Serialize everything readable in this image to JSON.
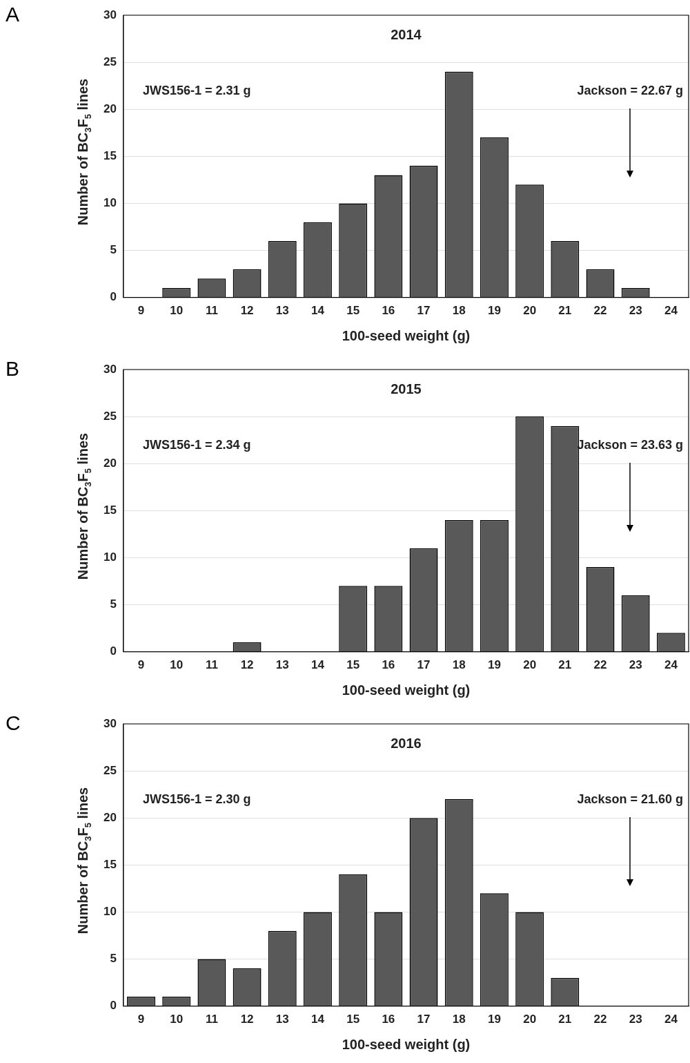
{
  "chart_data": [
    {
      "type": "bar",
      "title": "2014",
      "xlabel": "100-seed weight (g)",
      "ylabel": "Number of BC$_{3}$F$_{5}$ lines",
      "categories": [
        "9",
        "10",
        "11",
        "12",
        "13",
        "14",
        "15",
        "16",
        "17",
        "18",
        "19",
        "20",
        "21",
        "22",
        "23",
        "24"
      ],
      "values": [
        0,
        1,
        2,
        3,
        6,
        8,
        10,
        13,
        14,
        24,
        17,
        12,
        6,
        3,
        1,
        0
      ],
      "color": "#595959",
      "ylim": [
        0,
        30
      ],
      "yticks": [
        0,
        5,
        10,
        15,
        20,
        25,
        30
      ],
      "grid": "y",
      "legend": false,
      "annotations": [
        "A",
        "JWS156-1 = 2.31 g",
        "Jackson = 22.67 g"
      ]
    },
    {
      "type": "bar",
      "title": "2015",
      "xlabel": "100-seed weight (g)",
      "ylabel": "Number of BC$_{3}$F$_{5}$ lines",
      "categories": [
        "9",
        "10",
        "11",
        "12",
        "13",
        "14",
        "15",
        "16",
        "17",
        "18",
        "19",
        "20",
        "21",
        "22",
        "23",
        "24"
      ],
      "values": [
        0,
        0,
        0,
        1,
        0,
        0,
        7,
        7,
        11,
        14,
        14,
        25,
        24,
        9,
        6,
        2
      ],
      "color": "#595959",
      "ylim": [
        0,
        30
      ],
      "yticks": [
        0,
        5,
        10,
        15,
        20,
        25,
        30
      ],
      "grid": "y",
      "legend": false,
      "annotations": [
        "B",
        "JWS156-1 = 2.34 g",
        "Jackson = 23.63 g"
      ]
    },
    {
      "type": "bar",
      "title": "2016",
      "xlabel": "100-seed weight (g)",
      "ylabel": "Number of BC$_{3}$F$_{5}$ lines",
      "categories": [
        "9",
        "10",
        "11",
        "12",
        "13",
        "14",
        "15",
        "16",
        "17",
        "18",
        "19",
        "20",
        "21",
        "22",
        "23",
        "24"
      ],
      "values": [
        1,
        1,
        5,
        4,
        8,
        10,
        14,
        10,
        20,
        22,
        12,
        10,
        3,
        0,
        0,
        0
      ],
      "color": "#595959",
      "ylim": [
        0,
        30
      ],
      "yticks": [
        0,
        5,
        10,
        15,
        20,
        25,
        30
      ],
      "grid": "y",
      "legend": false,
      "annotations": [
        "C",
        "JWS156-1 = 2.30 g",
        "Jackson = 21.60 g"
      ]
    }
  ]
}
